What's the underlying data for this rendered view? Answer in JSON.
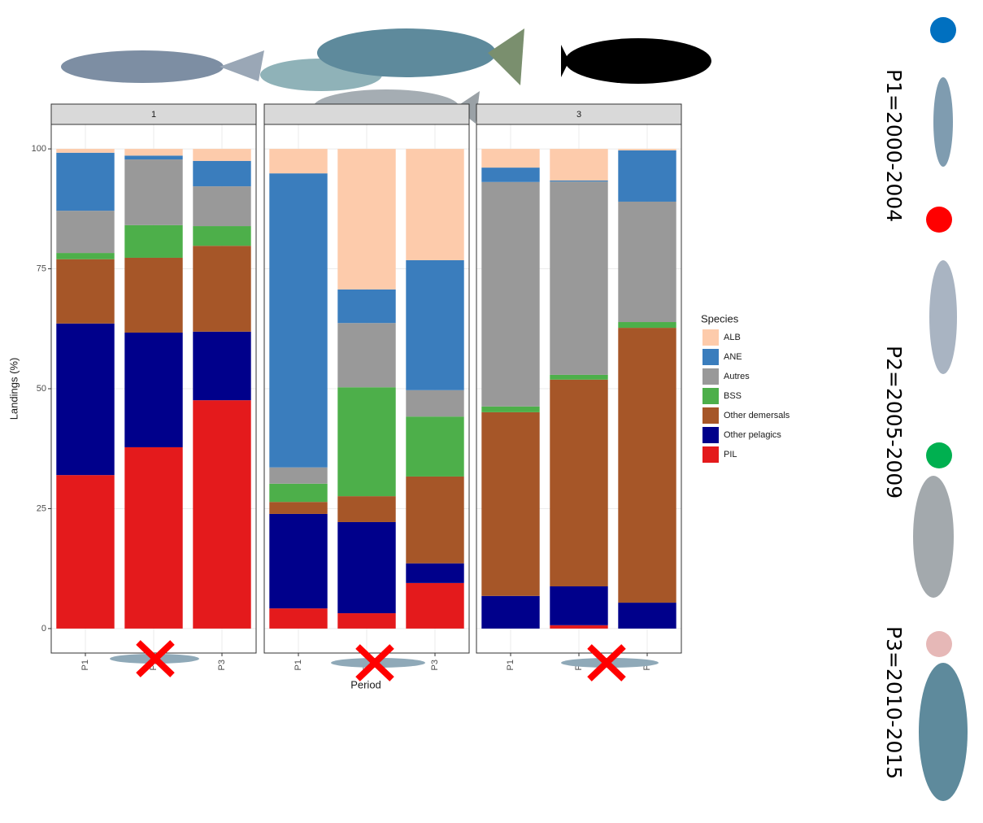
{
  "chart_data": [
    {
      "type": "bar",
      "stacked": true,
      "title": "1",
      "ylabel": "Landings (%)",
      "legend_title": "Species",
      "categories": [
        "P1",
        "P2",
        "P3"
      ],
      "ylim": [
        -5.1,
        105.1
      ],
      "yticks": [
        0,
        25,
        50,
        75,
        100
      ],
      "grid": true,
      "series": [
        {
          "name": "PIL",
          "color": "#e41a1c",
          "values": [
            32.0,
            37.8,
            47.6
          ]
        },
        {
          "name": "Other pelagics",
          "color": "#00008b",
          "values": [
            31.6,
            23.9,
            14.3
          ]
        },
        {
          "name": "Other demersals",
          "color": "#a65628",
          "values": [
            13.4,
            15.6,
            17.9
          ]
        },
        {
          "name": "BSS",
          "color": "#4daf4a",
          "values": [
            1.3,
            6.8,
            4.1
          ]
        },
        {
          "name": "Autres",
          "color": "#999999",
          "values": [
            8.8,
            13.7,
            8.3
          ]
        },
        {
          "name": "ANE",
          "color": "#3a7dbd",
          "values": [
            12.1,
            0.8,
            5.3
          ]
        },
        {
          "name": "ALB",
          "color": "#fdcbab",
          "values": [
            0.8,
            1.4,
            2.5
          ]
        }
      ]
    },
    {
      "type": "bar",
      "stacked": true,
      "xlabel": "Period",
      "categories": [
        "P1",
        "P2",
        "P3"
      ],
      "ylim": [
        -5.1,
        105.1
      ],
      "yticks": [
        0,
        25,
        50,
        75,
        100
      ],
      "grid": true,
      "series": [
        {
          "name": "PIL",
          "color": "#e41a1c",
          "values": [
            4.2,
            3.2,
            9.5
          ]
        },
        {
          "name": "Other pelagics",
          "color": "#00008b",
          "values": [
            19.7,
            19.0,
            4.1
          ]
        },
        {
          "name": "Other demersals",
          "color": "#a65628",
          "values": [
            2.5,
            5.4,
            18.1
          ]
        },
        {
          "name": "BSS",
          "color": "#4daf4a",
          "values": [
            3.8,
            22.7,
            12.5
          ]
        },
        {
          "name": "Autres",
          "color": "#999999",
          "values": [
            3.4,
            13.4,
            5.5
          ]
        },
        {
          "name": "ANE",
          "color": "#3a7dbd",
          "values": [
            61.3,
            7.0,
            27.1
          ]
        },
        {
          "name": "ALB",
          "color": "#fdcbab",
          "values": [
            5.1,
            29.3,
            23.2
          ]
        }
      ]
    },
    {
      "type": "bar",
      "stacked": true,
      "title": "3",
      "categories": [
        "P1",
        "P2",
        "P3"
      ],
      "ylim": [
        -5.1,
        105.1
      ],
      "yticks": [
        0,
        25,
        50,
        75,
        100
      ],
      "grid": true,
      "series": [
        {
          "name": "PIL",
          "color": "#e41a1c",
          "values": [
            0,
            0.7,
            0
          ]
        },
        {
          "name": "Other pelagics",
          "color": "#00008b",
          "values": [
            6.8,
            8.1,
            5.4
          ]
        },
        {
          "name": "Other demersals",
          "color": "#a65628",
          "values": [
            38.3,
            43.1,
            57.3
          ]
        },
        {
          "name": "BSS",
          "color": "#4daf4a",
          "values": [
            1.2,
            1.0,
            1.2
          ]
        },
        {
          "name": "Autres",
          "color": "#999999",
          "values": [
            46.8,
            40.3,
            25.1
          ]
        },
        {
          "name": "ANE",
          "color": "#3a7dbd",
          "values": [
            3.0,
            0.2,
            10.7
          ]
        },
        {
          "name": "ALB",
          "color": "#fdcbab",
          "values": [
            3.9,
            6.6,
            0.3
          ]
        }
      ]
    }
  ],
  "periods": [
    {
      "label": "P1=2000-2004",
      "color": "#0070c0"
    },
    {
      "label": "P2=2005-2009",
      "color": "#00b050"
    },
    {
      "label": "P3=2010-2015",
      "color": "#e6b8b7"
    }
  ],
  "period_extra_dot": {
    "color": "#ff0000"
  }
}
